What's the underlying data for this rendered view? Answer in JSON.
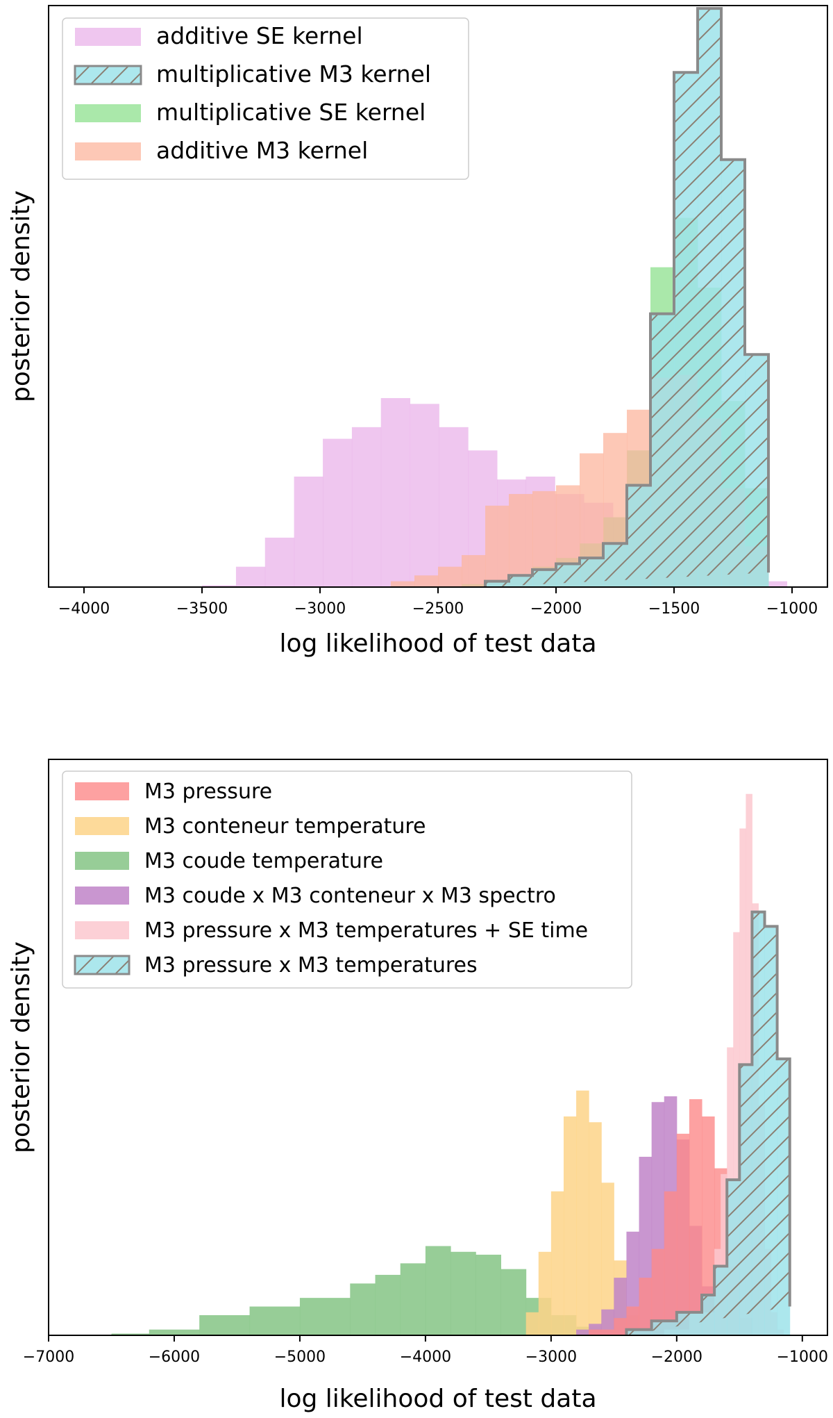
{
  "chart_data": [
    {
      "type": "histogram",
      "xlabel": "log likelihood of test data",
      "ylabel": "posterior density",
      "xlim": [
        -4150,
        -850
      ],
      "ylim": [
        0,
        1.0
      ],
      "xticks": [
        -4000,
        -3500,
        -3000,
        -2500,
        -2000,
        -1500,
        -1000
      ],
      "xtick_labels": [
        "−4000",
        "−3500",
        "−3000",
        "−2500",
        "−2000",
        "−1500",
        "−1000"
      ],
      "legend_position": "upper-left",
      "series": [
        {
          "name": "additive SE kernel",
          "color": "#e9b3ea",
          "opacity": 0.75,
          "edges": [
            -3500,
            -3356,
            -3233,
            -3110,
            -2988,
            -2865,
            -2742,
            -2619,
            -2496,
            -2373,
            -2250,
            -2128,
            -2005,
            -1882,
            -1759,
            -1636,
            -1513,
            -1390,
            -1267,
            -1145,
            -1022
          ],
          "values": [
            0.003,
            0.035,
            0.085,
            0.19,
            0.255,
            0.275,
            0.325,
            0.315,
            0.275,
            0.235,
            0.185,
            0.19,
            0.16,
            0.145,
            0.12,
            0.085,
            0.07,
            0.05,
            0.03,
            0.01
          ]
        },
        {
          "name": "multiplicative SE kernel",
          "color": "#8ee08e",
          "opacity": 0.75,
          "edges": [
            -2400,
            -2300,
            -2200,
            -2100,
            -2000,
            -1900,
            -1800,
            -1700,
            -1600,
            -1500,
            -1400,
            -1300,
            -1200,
            -1100
          ],
          "values": [
            0.005,
            0.01,
            0.02,
            0.035,
            0.05,
            0.075,
            0.12,
            0.235,
            0.55,
            0.635,
            0.515,
            0.32,
            0.17,
            0.04
          ]
        },
        {
          "name": "additive M3 kernel",
          "color": "#fcb69e",
          "opacity": 0.75,
          "edges": [
            -2700,
            -2600,
            -2500,
            -2400,
            -2300,
            -2200,
            -2100,
            -2000,
            -1900,
            -1800,
            -1700,
            -1600,
            -1500,
            -1400,
            -1300,
            -1200,
            -1100
          ],
          "values": [
            0.01,
            0.02,
            0.035,
            0.055,
            0.14,
            0.16,
            0.165,
            0.175,
            0.23,
            0.265,
            0.305,
            0.36,
            0.365,
            0.29,
            0.17,
            0.07,
            0.02
          ]
        },
        {
          "name": "multiplicative M3 kernel",
          "color": "#9ee3ea",
          "opacity": 0.85,
          "hatch": true,
          "edges": [
            -2300,
            -2200,
            -2100,
            -2000,
            -1900,
            -1800,
            -1700,
            -1600,
            -1500,
            -1400,
            -1300,
            -1200,
            -1100
          ],
          "values": [
            0.01,
            0.02,
            0.03,
            0.04,
            0.05,
            0.075,
            0.175,
            0.47,
            0.885,
            0.995,
            0.735,
            0.4,
            0.025
          ]
        }
      ],
      "legend_order": [
        "additive SE kernel",
        "multiplicative M3 kernel",
        "multiplicative SE kernel",
        "additive M3 kernel"
      ]
    },
    {
      "type": "histogram",
      "xlabel": "log likelihood of test data",
      "ylabel": "posterior density",
      "xlim": [
        -7000,
        -800
      ],
      "ylim": [
        0,
        1.0
      ],
      "xticks": [
        -7000,
        -6000,
        -5000,
        -4000,
        -3000,
        -2000,
        -1000
      ],
      "xtick_labels": [
        "−7000",
        "−6000",
        "−5000",
        "−4000",
        "−3000",
        "−2000",
        "−1000"
      ],
      "legend_position": "upper-left",
      "series": [
        {
          "name": "M3 coude temperature",
          "color": "#8cc88c",
          "opacity": 0.9,
          "edges": [
            -6500,
            -6200,
            -5800,
            -5400,
            -5000,
            -4600,
            -4400,
            -4200,
            -4000,
            -3800,
            -3600,
            -3400,
            -3200,
            -3000,
            -2800,
            -2600
          ],
          "values": [
            0.003,
            0.01,
            0.035,
            0.05,
            0.065,
            0.09,
            0.105,
            0.125,
            0.155,
            0.145,
            0.14,
            0.115,
            0.065,
            0.035,
            0.015
          ]
        },
        {
          "name": "M3 conteneur temperature",
          "color": "#fdd488",
          "opacity": 0.85,
          "edges": [
            -3200,
            -3100,
            -3000,
            -2900,
            -2800,
            -2700,
            -2600,
            -2500,
            -2400,
            -2300
          ],
          "values": [
            0.04,
            0.145,
            0.25,
            0.38,
            0.425,
            0.37,
            0.265,
            0.13,
            0.035
          ]
        },
        {
          "name": "M3 coude x M3 conteneur x M3  spectro",
          "color": "#c084c8",
          "opacity": 0.85,
          "edges": [
            -2800,
            -2700,
            -2600,
            -2500,
            -2400,
            -2300,
            -2200,
            -2100,
            -2000,
            -1900,
            -1800,
            -1700,
            -1600,
            -1500
          ],
          "values": [
            0.01,
            0.02,
            0.045,
            0.1,
            0.18,
            0.31,
            0.405,
            0.415,
            0.34,
            0.19,
            0.085,
            0.035,
            0.01
          ]
        },
        {
          "name": "M3 pressure",
          "color": "#fd8a8a",
          "opacity": 0.8,
          "edges": [
            -2700,
            -2500,
            -2400,
            -2300,
            -2200,
            -2100,
            -2000,
            -1900,
            -1800,
            -1700,
            -1600,
            -1500,
            -1400
          ],
          "values": [
            0.01,
            0.03,
            0.05,
            0.1,
            0.15,
            0.25,
            0.35,
            0.41,
            0.38,
            0.29,
            0.12,
            0.03
          ]
        },
        {
          "name": "M3 pressure x M3 temperatures + SE time",
          "color": "#fcc8cf",
          "opacity": 0.85,
          "edges": [
            -2100,
            -1900,
            -1700,
            -1650,
            -1600,
            -1550,
            -1500,
            -1450,
            -1400,
            -1350,
            -1300,
            -1250,
            -1200,
            -1150
          ],
          "values": [
            0.01,
            0.04,
            0.15,
            0.28,
            0.5,
            0.7,
            0.88,
            0.94,
            0.75,
            0.4,
            0.15,
            0.04,
            0.01
          ]
        },
        {
          "name": "M3 pressure x M3 temperatures",
          "color": "#9ee3ea",
          "opacity": 0.85,
          "hatch": true,
          "edges": [
            -2400,
            -2200,
            -2000,
            -1800,
            -1700,
            -1600,
            -1500,
            -1400,
            -1300,
            -1200,
            -1100
          ],
          "values": [
            0.01,
            0.025,
            0.04,
            0.07,
            0.12,
            0.27,
            0.47,
            0.735,
            0.71,
            0.48,
            0.05
          ]
        }
      ],
      "legend_order": [
        "M3 pressure",
        "M3 conteneur temperature",
        "M3 coude temperature",
        "M3 coude x M3 conteneur x M3  spectro",
        "M3 pressure x M3 temperatures + SE time",
        "M3 pressure x M3 temperatures"
      ]
    }
  ]
}
